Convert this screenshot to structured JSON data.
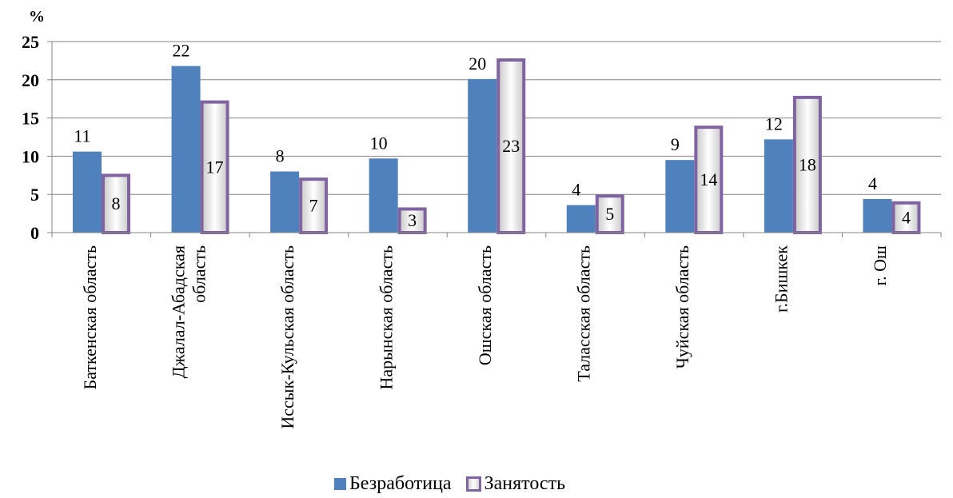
{
  "chart_data": {
    "type": "bar",
    "y_unit": "%",
    "ylim": [
      0,
      25
    ],
    "yticks": [
      0,
      5,
      10,
      15,
      20,
      25
    ],
    "grid": true,
    "legend_position": "bottom",
    "categories": [
      [
        "Баткенская область"
      ],
      [
        "Джалал-Абадская",
        "область"
      ],
      [
        "Иссык-Кульская область"
      ],
      [
        "Нарынская область"
      ],
      [
        "Ошская область"
      ],
      [
        "Таласская область"
      ],
      [
        "Чуйская область"
      ],
      [
        "г.Бишкек"
      ],
      [
        "г. Ош"
      ]
    ],
    "series": [
      {
        "name": "Безработица",
        "color": "#4f81bd",
        "values": [
          10.6,
          21.8,
          8.0,
          9.7,
          20.1,
          3.6,
          9.5,
          12.2,
          4.4
        ],
        "labels": [
          "11",
          "22",
          "8",
          "10",
          "20",
          "4",
          "9",
          "12",
          "4"
        ]
      },
      {
        "name": "Занятость",
        "color": "#8064a2",
        "values": [
          7.7,
          17.3,
          7.2,
          3.3,
          22.8,
          5.0,
          14.0,
          17.9,
          4.1
        ],
        "labels": [
          "8",
          "17",
          "7",
          "3",
          "23",
          "5",
          "14",
          "18",
          "4"
        ]
      }
    ]
  }
}
